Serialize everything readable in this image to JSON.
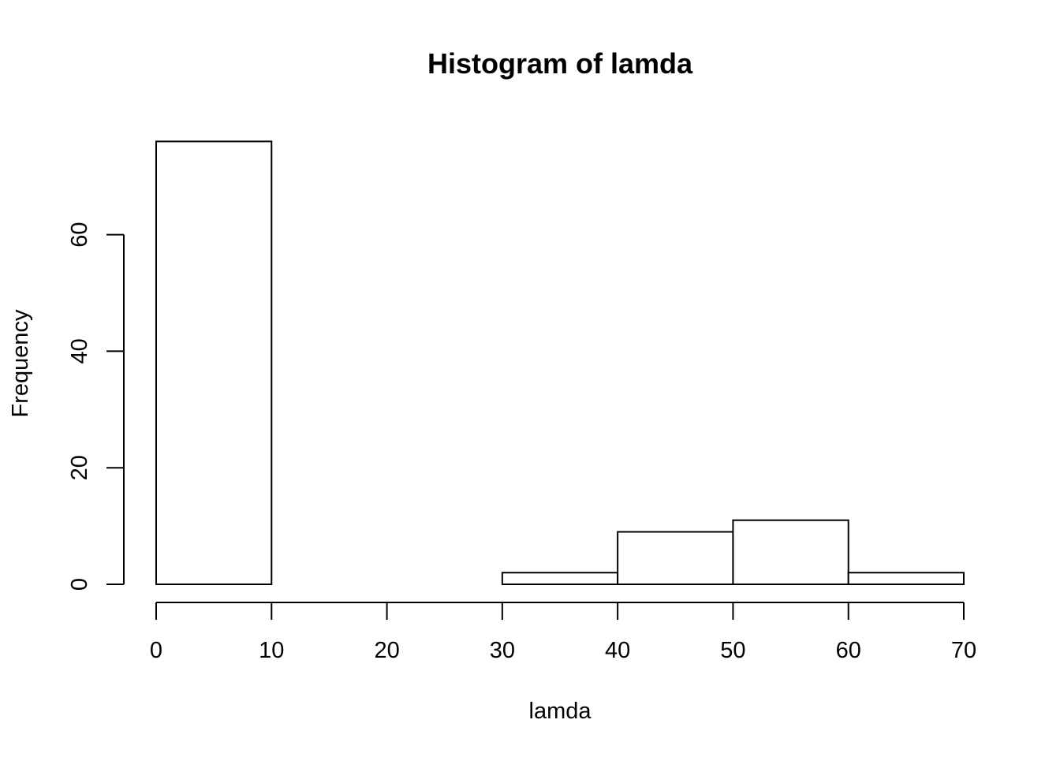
{
  "chart_data": {
    "type": "bar",
    "histogram": true,
    "title": "Histogram of lamda",
    "xlabel": "lamda",
    "ylabel": "Frequency",
    "bins": [
      {
        "start": 0,
        "end": 10,
        "count": 76
      },
      {
        "start": 10,
        "end": 20,
        "count": 0
      },
      {
        "start": 20,
        "end": 30,
        "count": 0
      },
      {
        "start": 30,
        "end": 40,
        "count": 2
      },
      {
        "start": 40,
        "end": 50,
        "count": 9
      },
      {
        "start": 50,
        "end": 60,
        "count": 11
      },
      {
        "start": 60,
        "end": 70,
        "count": 2
      }
    ],
    "xlim": [
      0,
      70
    ],
    "ylim": [
      0,
      76
    ],
    "x_ticks": [
      "0",
      "10",
      "20",
      "30",
      "40",
      "50",
      "60",
      "70"
    ],
    "y_ticks": [
      "0",
      "20",
      "40",
      "60"
    ],
    "grid": false,
    "bar_fill": "#ffffff",
    "bar_stroke": "#000000"
  }
}
